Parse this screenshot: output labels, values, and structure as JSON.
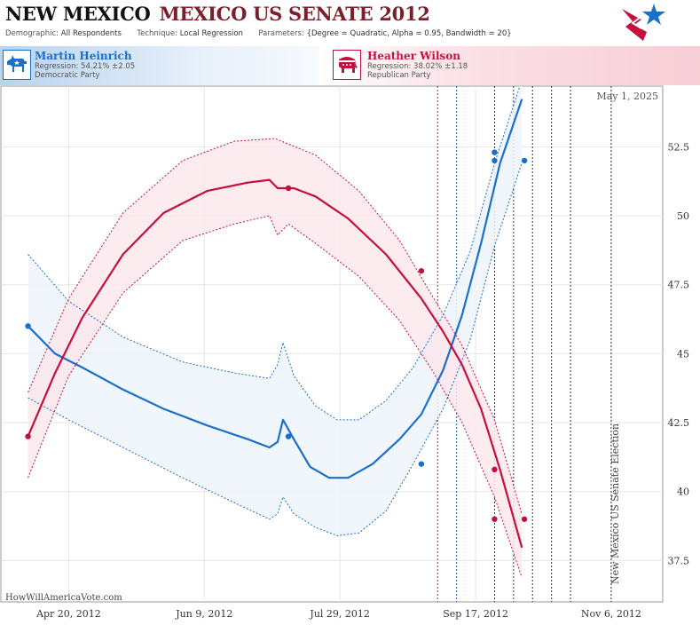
{
  "header": {
    "state": "NEW MEXICO",
    "race": "MEXICO US SENATE 2012",
    "demographic_label": "Demographic:",
    "demographic_value": "All Respondents",
    "technique_label": "Technique:",
    "technique_value": "Local Regression",
    "parameters_label": "Parameters:",
    "parameters_value": "{Degree = Quadratic, Alpha = 0.95, Bandwidth = 20}"
  },
  "candidates": {
    "dem": {
      "name": "Martin Heinrich",
      "regression": "Regression: 54.21% ±2.05",
      "party": "Democratic Party"
    },
    "rep": {
      "name": "Heather Wilson",
      "regression": "Regression: 38.02% ±1.18",
      "party": "Republican Party"
    }
  },
  "footer": {
    "site": "HowWillAmericaVote.com"
  },
  "colors": {
    "dem": "#1a6fc9",
    "rep": "#c4103c",
    "dem_band": "#eef4fb",
    "rep_band": "#fbe8ec"
  },
  "chart_data": {
    "type": "line",
    "current_date_label": "May 1, 2025",
    "election_label": "New Mexico US Senate Election",
    "x_axis": {
      "type": "date",
      "range": [
        "2012-03-26",
        "2012-11-25"
      ],
      "ticks": [
        {
          "date": "2012-04-20",
          "label": "Apr 20, 2012"
        },
        {
          "date": "2012-06-09",
          "label": "Jun 9, 2012"
        },
        {
          "date": "2012-07-29",
          "label": "Jul 29, 2012"
        },
        {
          "date": "2012-09-17",
          "label": "Sep 17, 2012"
        },
        {
          "date": "2012-11-06",
          "label": "Nov 6, 2012"
        }
      ]
    },
    "y_axis": {
      "range": [
        36.0,
        54.7
      ],
      "ticks": [
        {
          "value": 37.5,
          "label": "37.5"
        },
        {
          "value": 40,
          "label": "40"
        },
        {
          "value": 42.5,
          "label": "42.5"
        },
        {
          "value": 45,
          "label": "45"
        },
        {
          "value": 47.5,
          "label": "47.5"
        },
        {
          "value": 50,
          "label": "50"
        },
        {
          "value": 52.5,
          "label": "52.5"
        }
      ]
    },
    "vertical_markers": [
      {
        "date": "2012-09-03",
        "style": "rep-dotted"
      },
      {
        "date": "2012-09-10",
        "style": "dem-dotted"
      },
      {
        "date": "2012-09-24",
        "style": "black-dotted"
      },
      {
        "date": "2012-10-01",
        "style": "black-dotted"
      },
      {
        "date": "2012-10-08",
        "style": "black-dotted"
      },
      {
        "date": "2012-10-15",
        "style": "black-dotted"
      },
      {
        "date": "2012-10-22",
        "style": "black-dotted"
      },
      {
        "date": "2012-11-06",
        "style": "black-dotted"
      }
    ],
    "series": [
      {
        "name": "Martin Heinrich",
        "party": "dem",
        "points": [
          {
            "x": "2012-04-05",
            "y": 46.0
          },
          {
            "x": "2012-07-10",
            "y": 42.0
          },
          {
            "x": "2012-08-28",
            "y": 41.0
          },
          {
            "x": "2012-09-24",
            "y": 52.3
          },
          {
            "x": "2012-09-24",
            "y": 52.0
          },
          {
            "x": "2012-10-05",
            "y": 52.0
          }
        ],
        "line": [
          [
            "2012-04-05",
            46.0
          ],
          [
            "2012-04-15",
            45.0
          ],
          [
            "2012-04-25",
            44.5
          ],
          [
            "2012-05-10",
            43.7
          ],
          [
            "2012-05-25",
            43.0
          ],
          [
            "2012-06-10",
            42.4
          ],
          [
            "2012-06-25",
            41.9
          ],
          [
            "2012-07-03",
            41.6
          ],
          [
            "2012-07-06",
            41.8
          ],
          [
            "2012-07-08",
            42.6
          ],
          [
            "2012-07-12",
            41.9
          ],
          [
            "2012-07-18",
            40.9
          ],
          [
            "2012-07-25",
            40.5
          ],
          [
            "2012-08-01",
            40.5
          ],
          [
            "2012-08-10",
            41.0
          ],
          [
            "2012-08-20",
            41.9
          ],
          [
            "2012-08-28",
            42.8
          ],
          [
            "2012-09-05",
            44.4
          ],
          [
            "2012-09-12",
            46.4
          ],
          [
            "2012-09-19",
            49.0
          ],
          [
            "2012-09-26",
            51.9
          ],
          [
            "2012-10-04",
            54.2
          ]
        ],
        "upper": [
          [
            "2012-04-05",
            48.6
          ],
          [
            "2012-04-20",
            46.9
          ],
          [
            "2012-05-10",
            45.6
          ],
          [
            "2012-06-01",
            44.7
          ],
          [
            "2012-06-20",
            44.3
          ],
          [
            "2012-07-03",
            44.1
          ],
          [
            "2012-07-06",
            44.6
          ],
          [
            "2012-07-08",
            45.4
          ],
          [
            "2012-07-12",
            44.2
          ],
          [
            "2012-07-20",
            43.1
          ],
          [
            "2012-07-28",
            42.6
          ],
          [
            "2012-08-05",
            42.6
          ],
          [
            "2012-08-15",
            43.3
          ],
          [
            "2012-08-25",
            44.5
          ],
          [
            "2012-09-05",
            46.4
          ],
          [
            "2012-09-15",
            48.7
          ],
          [
            "2012-09-24",
            51.9
          ],
          [
            "2012-10-04",
            54.9
          ]
        ],
        "lower": [
          [
            "2012-04-05",
            43.4
          ],
          [
            "2012-04-20",
            42.6
          ],
          [
            "2012-05-10",
            41.6
          ],
          [
            "2012-06-01",
            40.5
          ],
          [
            "2012-06-20",
            39.6
          ],
          [
            "2012-07-03",
            39.0
          ],
          [
            "2012-07-06",
            39.2
          ],
          [
            "2012-07-08",
            39.8
          ],
          [
            "2012-07-12",
            39.2
          ],
          [
            "2012-07-20",
            38.7
          ],
          [
            "2012-07-28",
            38.4
          ],
          [
            "2012-08-05",
            38.5
          ],
          [
            "2012-08-15",
            39.3
          ],
          [
            "2012-08-25",
            41.0
          ],
          [
            "2012-09-05",
            43.0
          ],
          [
            "2012-09-15",
            45.5
          ],
          [
            "2012-09-24",
            48.9
          ],
          [
            "2012-10-04",
            51.9
          ]
        ]
      },
      {
        "name": "Heather Wilson",
        "party": "rep",
        "points": [
          {
            "x": "2012-04-05",
            "y": 42.0
          },
          {
            "x": "2012-07-10",
            "y": 51.0
          },
          {
            "x": "2012-08-28",
            "y": 48.0
          },
          {
            "x": "2012-09-24",
            "y": 40.8
          },
          {
            "x": "2012-09-24",
            "y": 39.0
          },
          {
            "x": "2012-10-05",
            "y": 39.0
          }
        ],
        "line": [
          [
            "2012-04-05",
            42.0
          ],
          [
            "2012-04-15",
            44.3
          ],
          [
            "2012-04-25",
            46.3
          ],
          [
            "2012-05-10",
            48.6
          ],
          [
            "2012-05-25",
            50.1
          ],
          [
            "2012-06-10",
            50.9
          ],
          [
            "2012-06-25",
            51.2
          ],
          [
            "2012-07-03",
            51.3
          ],
          [
            "2012-07-06",
            51.0
          ],
          [
            "2012-07-08",
            51.0
          ],
          [
            "2012-07-12",
            51.0
          ],
          [
            "2012-07-20",
            50.7
          ],
          [
            "2012-08-01",
            49.9
          ],
          [
            "2012-08-15",
            48.6
          ],
          [
            "2012-08-28",
            47.0
          ],
          [
            "2012-09-05",
            45.8
          ],
          [
            "2012-09-12",
            44.6
          ],
          [
            "2012-09-19",
            43.0
          ],
          [
            "2012-09-26",
            40.8
          ],
          [
            "2012-10-04",
            38.0
          ]
        ],
        "upper": [
          [
            "2012-04-05",
            43.6
          ],
          [
            "2012-04-20",
            47.0
          ],
          [
            "2012-05-10",
            50.1
          ],
          [
            "2012-06-01",
            52.0
          ],
          [
            "2012-06-20",
            52.7
          ],
          [
            "2012-07-05",
            52.8
          ],
          [
            "2012-07-20",
            52.2
          ],
          [
            "2012-08-05",
            50.9
          ],
          [
            "2012-08-20",
            49.1
          ],
          [
            "2012-09-01",
            47.1
          ],
          [
            "2012-09-12",
            45.3
          ],
          [
            "2012-09-24",
            42.6
          ],
          [
            "2012-10-04",
            39.2
          ]
        ],
        "lower": [
          [
            "2012-04-05",
            40.5
          ],
          [
            "2012-04-20",
            44.2
          ],
          [
            "2012-05-10",
            47.2
          ],
          [
            "2012-06-01",
            49.1
          ],
          [
            "2012-06-20",
            49.7
          ],
          [
            "2012-07-03",
            50.0
          ],
          [
            "2012-07-06",
            49.3
          ],
          [
            "2012-07-10",
            49.7
          ],
          [
            "2012-07-20",
            49.0
          ],
          [
            "2012-08-05",
            47.8
          ],
          [
            "2012-08-20",
            46.2
          ],
          [
            "2012-09-01",
            44.4
          ],
          [
            "2012-09-12",
            42.5
          ],
          [
            "2012-09-24",
            39.8
          ],
          [
            "2012-10-04",
            36.9
          ]
        ]
      }
    ]
  }
}
